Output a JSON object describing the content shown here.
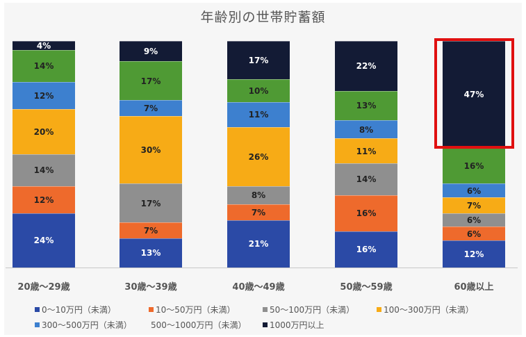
{
  "chart_data": {
    "type": "bar",
    "stacked": true,
    "normalized": true,
    "title": "年齢別の世帯貯蓄額",
    "xlabel": "",
    "ylabel": "",
    "categories": [
      "20歳〜29歳",
      "30歳〜39歳",
      "40歳〜49歳",
      "50歳〜59歳",
      "60歳以上"
    ],
    "series": [
      {
        "name": "0〜10万円（未満）",
        "color": "#2b4aa6",
        "values": [
          24,
          13,
          21,
          16,
          12
        ]
      },
      {
        "name": "10〜50万円（未満）",
        "color": "#ee6a2c",
        "values": [
          12,
          7,
          7,
          16,
          6
        ]
      },
      {
        "name": "50〜100万円（未満）",
        "color": "#8f8f8f",
        "values": [
          14,
          17,
          8,
          14,
          6
        ]
      },
      {
        "name": "100〜300万円（未満）",
        "color": "#f7ab16",
        "values": [
          20,
          30,
          26,
          11,
          7
        ]
      },
      {
        "name": "300〜500万円（未満）",
        "color": "#3d80cf",
        "values": [
          12,
          7,
          11,
          8,
          6
        ]
      },
      {
        "name": "500〜1000万円（未満）",
        "color": "#4f9a34",
        "values": [
          14,
          17,
          10,
          13,
          16
        ]
      },
      {
        "name": "1000万円以上",
        "color": "#131b35",
        "values": [
          4,
          9,
          17,
          22,
          47
        ]
      }
    ],
    "value_format": "{v}%",
    "ylim": [
      0,
      100
    ],
    "grid": false,
    "legend_position": "bottom",
    "annotations": [
      {
        "type": "highlight-box",
        "target": "60歳以上 / 1000万円以上",
        "value": "47%",
        "color": "#e01010"
      }
    ]
  },
  "labels": {
    "title": "年齢別の世帯貯蓄額",
    "x": [
      "20歳〜29歳",
      "30歳〜39歳",
      "40歳〜49歳",
      "50歳〜59歳",
      "60歳以上"
    ],
    "legend": [
      "0〜10万円（未満）",
      "10〜50万円（未満）",
      "50〜100万円（未満）",
      "100〜300万円（未満）",
      "300〜500万円（未満）",
      "500〜1000万円（未満）",
      "1000万円以上"
    ]
  }
}
